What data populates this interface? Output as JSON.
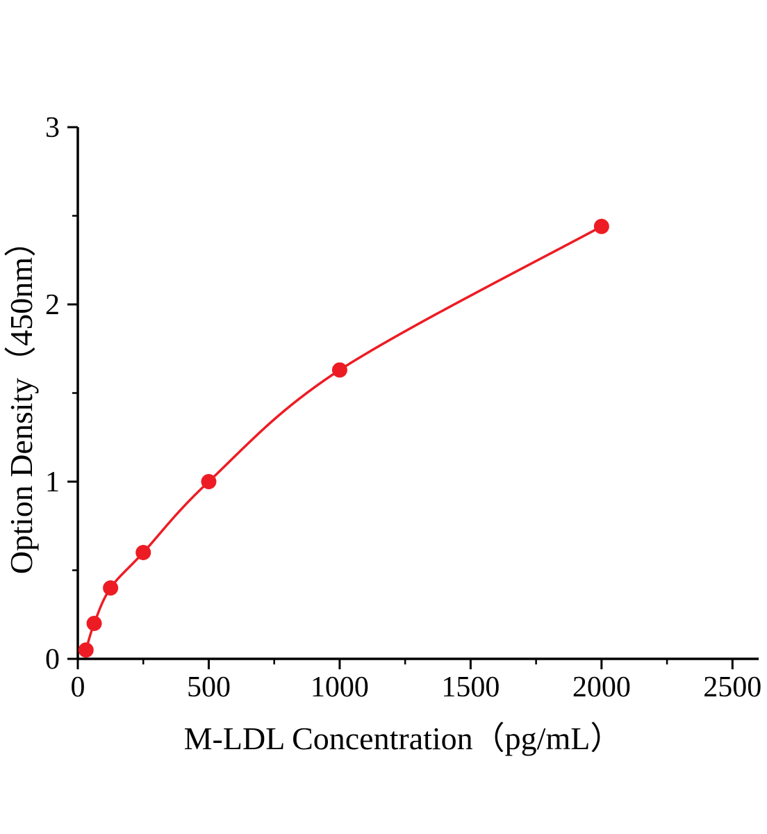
{
  "chart_data": {
    "type": "line",
    "title": "",
    "xlabel": "M-LDL Concentration（pg/mL）",
    "ylabel": "Option Density（450nm）",
    "x": [
      31.25,
      62.5,
      125,
      250,
      500,
      1000,
      2000
    ],
    "y": [
      0.05,
      0.2,
      0.4,
      0.6,
      1.0,
      1.63,
      2.44
    ],
    "xlim": [
      0,
      2600
    ],
    "ylim": [
      0,
      3
    ],
    "x_ticks": [
      0,
      500,
      1000,
      1500,
      2000,
      2500
    ],
    "y_ticks": [
      0,
      1,
      2,
      3
    ],
    "x_minor_ticks": [
      250,
      750,
      1250,
      1750,
      2250
    ],
    "y_minor_ticks": [
      0.5,
      1.5,
      2.5
    ],
    "grid": false,
    "legend": "none",
    "line_color": "#ed1c24",
    "marker_color": "#ed1c24",
    "axis_color": "#000000",
    "background": "#ffffff"
  }
}
